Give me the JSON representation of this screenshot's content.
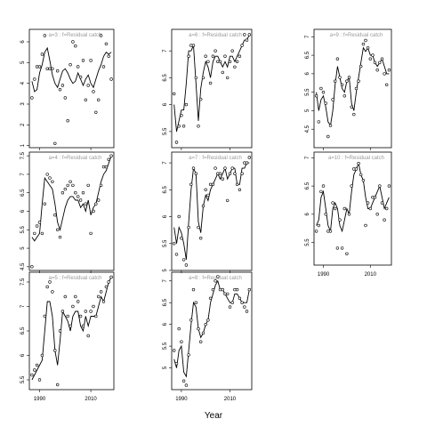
{
  "figure": {
    "xlabel": "Year",
    "ink_color": "#000000",
    "label_color": "#999999",
    "x_range": [
      1986,
      2019
    ],
    "x_ticks": [
      1990,
      2010
    ]
  },
  "chart_data": [
    {
      "type": "line",
      "title": "a=3  :  f=Residual catch",
      "ylim": [
        0.9,
        6.6
      ],
      "y_ticks": [
        1,
        2,
        3,
        4,
        5,
        6
      ],
      "x": [
        1987,
        1988,
        1989,
        1990,
        1991,
        1992,
        1993,
        1994,
        1995,
        1996,
        1997,
        1998,
        1999,
        2000,
        2001,
        2002,
        2003,
        2004,
        2005,
        2006,
        2007,
        2008,
        2009,
        2010,
        2011,
        2012,
        2013,
        2014,
        2015,
        2016,
        2017,
        2018
      ],
      "fitted": [
        4.1,
        3.6,
        3.7,
        4.5,
        4.9,
        5.5,
        5.7,
        5.1,
        4.4,
        4.0,
        3.8,
        4.2,
        4.6,
        4.7,
        4.5,
        4.2,
        4.0,
        4.1,
        4.5,
        4.2,
        3.9,
        4.2,
        4.4,
        4.0,
        3.8,
        4.2,
        4.6,
        4.9,
        5.3,
        5.5,
        5.4,
        5.5
      ],
      "observed": [
        3.3,
        4.2,
        4.8,
        4.8,
        5.4,
        6.3,
        4.7,
        4.7,
        4.7,
        1.1,
        4.6,
        3.7,
        3.9,
        3.3,
        2.2,
        4.9,
        6.0,
        5.8,
        4.8,
        4.3,
        5.1,
        3.2,
        3.9,
        5.1,
        3.6,
        2.6,
        3.2,
        6.3,
        4.8,
        5.9,
        5.3,
        4.2
      ]
    },
    {
      "type": "line",
      "title": "a=4  :  f=Residual catch",
      "ylim": [
        4.4,
        7.6
      ],
      "y_ticks": [
        4.5,
        5.0,
        5.5,
        6.0,
        6.5,
        7.0,
        7.5
      ],
      "x": [
        1987,
        1988,
        1989,
        1990,
        1991,
        1992,
        1993,
        1994,
        1995,
        1996,
        1997,
        1998,
        1999,
        2000,
        2001,
        2002,
        2003,
        2004,
        2005,
        2006,
        2007,
        2008,
        2009,
        2010,
        2011,
        2012,
        2013,
        2014,
        2015,
        2016,
        2017,
        2018
      ],
      "fitted": [
        5.3,
        5.2,
        5.3,
        5.4,
        6.2,
        6.9,
        6.8,
        6.7,
        6.6,
        6.2,
        5.7,
        5.5,
        5.8,
        6.1,
        6.3,
        6.4,
        6.4,
        6.3,
        6.3,
        6.1,
        6.2,
        6.0,
        6.3,
        5.9,
        6.1,
        6.2,
        6.5,
        6.8,
        7.0,
        7.1,
        7.3,
        7.5
      ],
      "observed": [
        4.5,
        5.4,
        5.6,
        5.7,
        5.4,
        6.2,
        7.0,
        6.9,
        6.8,
        5.9,
        5.5,
        5.3,
        6.5,
        6.6,
        6.7,
        6.8,
        6.7,
        6.5,
        6.4,
        6.3,
        6.5,
        6.2,
        6.7,
        5.4,
        6.0,
        6.2,
        6.3,
        6.7,
        7.2,
        7.2,
        7.4,
        7.5
      ]
    },
    {
      "type": "line",
      "title": "a=5  :  f=Residual catch",
      "ylim": [
        5.3,
        7.7
      ],
      "y_ticks": [
        5.5,
        6.0,
        6.5,
        7.0,
        7.5
      ],
      "x": [
        1987,
        1988,
        1989,
        1990,
        1991,
        1992,
        1993,
        1994,
        1995,
        1996,
        1997,
        1998,
        1999,
        2000,
        2001,
        2002,
        2003,
        2004,
        2005,
        2006,
        2007,
        2008,
        2009,
        2010,
        2011,
        2012,
        2013,
        2014,
        2015,
        2016,
        2017,
        2018
      ],
      "fitted": [
        5.5,
        5.6,
        5.7,
        5.8,
        5.9,
        6.5,
        7.1,
        7.1,
        6.8,
        6.1,
        5.8,
        6.3,
        6.9,
        6.8,
        6.7,
        6.5,
        6.8,
        6.9,
        6.9,
        6.6,
        6.5,
        6.8,
        6.6,
        6.8,
        6.8,
        6.8,
        7.0,
        7.2,
        7.1,
        7.3,
        7.5,
        7.6
      ],
      "observed": [
        5.6,
        5.7,
        5.8,
        5.5,
        6.0,
        6.8,
        7.4,
        7.5,
        7.3,
        6.1,
        5.4,
        6.5,
        6.9,
        7.2,
        6.8,
        6.6,
        7.0,
        7.2,
        7.1,
        6.8,
        6.6,
        6.9,
        6.4,
        6.9,
        7.0,
        6.8,
        7.2,
        7.3,
        7.1,
        7.4,
        7.5,
        7.6
      ]
    },
    {
      "type": "line",
      "title": "a=6  :  f=Residual catch",
      "ylim": [
        5.2,
        7.4
      ],
      "y_ticks": [
        5.5,
        6.0,
        6.5,
        7.0
      ],
      "x": [
        1987,
        1988,
        1989,
        1990,
        1991,
        1992,
        1993,
        1994,
        1995,
        1996,
        1997,
        1998,
        1999,
        2000,
        2001,
        2002,
        2003,
        2004,
        2005,
        2006,
        2007,
        2008,
        2009,
        2010,
        2011,
        2012,
        2013,
        2014,
        2015,
        2016,
        2017,
        2018
      ],
      "fitted": [
        6.0,
        5.5,
        5.7,
        5.9,
        5.9,
        6.4,
        7.0,
        7.0,
        7.1,
        6.4,
        5.7,
        6.3,
        6.6,
        6.8,
        6.7,
        6.5,
        6.8,
        6.9,
        6.9,
        6.8,
        6.7,
        6.8,
        6.7,
        6.9,
        6.9,
        6.8,
        6.9,
        7.0,
        7.1,
        7.2,
        7.2,
        7.3
      ],
      "observed": [
        6.2,
        5.3,
        5.6,
        5.8,
        5.6,
        6.0,
        6.9,
        7.1,
        7.1,
        6.5,
        5.6,
        6.1,
        6.5,
        6.9,
        6.8,
        6.4,
        6.9,
        7.0,
        6.8,
        6.8,
        6.6,
        6.9,
        6.5,
        6.8,
        7.0,
        6.7,
        6.8,
        6.9,
        7.1,
        7.3,
        7.2,
        7.3
      ]
    },
    {
      "type": "line",
      "title": "a=7  :  f=Residual catch",
      "ylim": [
        5.0,
        7.2
      ],
      "y_ticks": [
        5.0,
        5.5,
        6.0,
        6.5,
        7.0
      ],
      "x": [
        1987,
        1988,
        1989,
        1990,
        1991,
        1992,
        1993,
        1994,
        1995,
        1996,
        1997,
        1998,
        1999,
        2000,
        2001,
        2002,
        2003,
        2004,
        2005,
        2006,
        2007,
        2008,
        2009,
        2010,
        2011,
        2012,
        2013,
        2014,
        2015,
        2016,
        2017,
        2018
      ],
      "fitted": [
        5.8,
        5.5,
        5.8,
        5.7,
        5.5,
        5.2,
        5.9,
        6.5,
        6.9,
        6.8,
        5.9,
        5.7,
        6.2,
        6.4,
        6.3,
        6.5,
        6.6,
        6.7,
        6.8,
        6.7,
        6.8,
        6.9,
        6.7,
        6.8,
        6.9,
        6.9,
        6.6,
        6.6,
        6.9,
        6.9,
        7.0,
        7.0
      ],
      "observed": [
        5.5,
        5.3,
        6.0,
        5.6,
        5.2,
        5.1,
        5.8,
        6.6,
        6.9,
        6.8,
        5.8,
        5.6,
        6.2,
        6.5,
        6.4,
        6.6,
        6.6,
        6.9,
        6.8,
        6.8,
        6.7,
        6.9,
        6.3,
        6.8,
        6.9,
        6.8,
        6.6,
        6.5,
        6.8,
        7.0,
        7.0,
        7.1
      ]
    },
    {
      "type": "line",
      "title": "a=8  :  f=Residual catch",
      "ylim": [
        4.5,
        7.2
      ],
      "y_ticks": [
        5.0,
        5.5,
        6.0,
        6.5,
        7.0
      ],
      "x": [
        1987,
        1988,
        1989,
        1990,
        1991,
        1992,
        1993,
        1994,
        1995,
        1996,
        1997,
        1998,
        1999,
        2000,
        2001,
        2002,
        2003,
        2004,
        2005,
        2006,
        2007,
        2008,
        2009,
        2010,
        2011,
        2012,
        2013,
        2014,
        2015,
        2016,
        2017,
        2018
      ],
      "fitted": [
        5.2,
        5.0,
        5.4,
        5.5,
        4.9,
        4.8,
        5.4,
        6.0,
        6.5,
        6.4,
        5.9,
        5.7,
        5.8,
        6.0,
        6.1,
        6.5,
        6.7,
        6.9,
        7.0,
        6.8,
        6.8,
        6.7,
        6.6,
        6.5,
        6.5,
        6.7,
        6.7,
        6.6,
        6.5,
        6.5,
        6.5,
        6.8
      ],
      "observed": [
        5.4,
        5.1,
        5.9,
        5.6,
        4.7,
        4.6,
        5.3,
        6.1,
        6.8,
        6.5,
        5.9,
        5.6,
        5.8,
        6.0,
        6.1,
        6.6,
        6.8,
        7.0,
        7.1,
        6.8,
        6.8,
        6.7,
        6.7,
        6.4,
        6.5,
        6.8,
        6.8,
        6.6,
        6.5,
        6.4,
        6.3,
        6.8
      ]
    },
    {
      "type": "line",
      "title": "a=9  :  f=Residual catch",
      "ylim": [
        4.0,
        7.2
      ],
      "y_ticks": [
        4.5,
        5.0,
        5.5,
        6.0,
        6.5,
        7.0
      ],
      "x": [
        1987,
        1988,
        1989,
        1990,
        1991,
        1992,
        1993,
        1994,
        1995,
        1996,
        1997,
        1998,
        1999,
        2000,
        2001,
        2002,
        2003,
        2004,
        2005,
        2006,
        2007,
        2008,
        2009,
        2010,
        2011,
        2012,
        2013,
        2014,
        2015,
        2016,
        2017,
        2018
      ],
      "fitted": [
        5.5,
        5.0,
        5.3,
        5.4,
        5.1,
        4.7,
        4.6,
        5.0,
        5.7,
        6.2,
        5.9,
        5.6,
        5.5,
        5.8,
        5.9,
        5.2,
        5.0,
        5.5,
        5.9,
        6.3,
        6.7,
        6.6,
        6.7,
        6.5,
        6.5,
        6.3,
        6.2,
        6.3,
        6.4,
        6.2,
        6.0,
        6.0
      ],
      "observed": [
        5.4,
        4.7,
        5.6,
        5.5,
        5.2,
        4.3,
        4.6,
        5.3,
        5.8,
        6.4,
        5.9,
        5.7,
        5.4,
        5.8,
        5.9,
        5.1,
        4.9,
        5.6,
        5.8,
        6.2,
        6.8,
        6.9,
        6.7,
        6.4,
        6.5,
        6.3,
        6.1,
        6.3,
        6.4,
        6.0,
        5.7,
        6.1
      ]
    },
    {
      "type": "line",
      "title": "a=10  :  f=Residual catch",
      "ylim": [
        5.1,
        7.1
      ],
      "y_ticks": [
        5.5,
        6.0,
        6.5,
        7.0
      ],
      "x": [
        1987,
        1988,
        1989,
        1990,
        1991,
        1992,
        1993,
        1994,
        1995,
        1996,
        1997,
        1998,
        1999,
        2000,
        2001,
        2002,
        2003,
        2004,
        2005,
        2006,
        2007,
        2008,
        2009,
        2010,
        2011,
        2012,
        2013,
        2014,
        2015,
        2016,
        2017,
        2018
      ],
      "fitted": [
        5.8,
        5.9,
        6.3,
        6.4,
        6.1,
        5.8,
        5.7,
        6.1,
        6.2,
        6.1,
        5.8,
        5.7,
        5.9,
        6.1,
        6.0,
        6.4,
        6.7,
        6.8,
        6.9,
        6.7,
        6.6,
        6.3,
        6.1,
        6.1,
        6.2,
        6.3,
        6.4,
        6.5,
        6.3,
        6.1,
        6.2,
        6.3
      ],
      "observed": [
        5.7,
        5.8,
        6.4,
        6.5,
        6.0,
        5.7,
        5.7,
        6.2,
        6.1,
        5.4,
        5.9,
        5.4,
        6.1,
        5.3,
        6.0,
        6.5,
        6.8,
        6.8,
        6.9,
        6.7,
        6.6,
        5.8,
        6.2,
        6.1,
        6.3,
        6.3,
        6.0,
        6.5,
        6.2,
        5.9,
        6.1,
        6.5
      ]
    }
  ]
}
